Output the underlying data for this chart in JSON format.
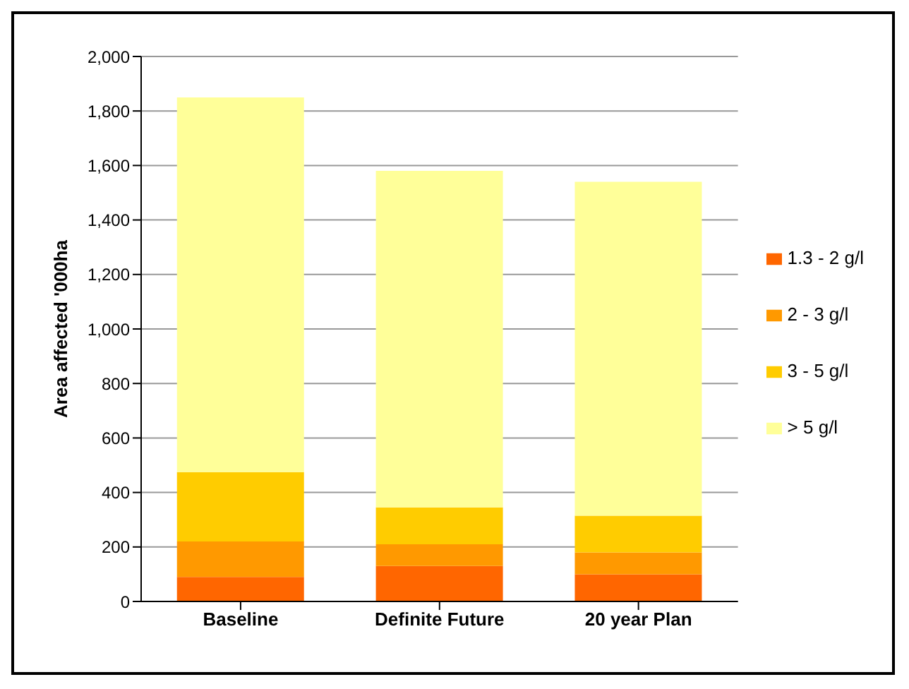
{
  "chart_data": {
    "type": "bar",
    "stacked": true,
    "ylabel": "Area affected '000ha",
    "categories": [
      "Baseline",
      "Definite Future",
      "20 year Plan"
    ],
    "series": [
      {
        "name": "1.3 - 2 g/l",
        "color": "#ff6600",
        "values": [
          90,
          130,
          100
        ]
      },
      {
        "name": "2 - 3 g/l",
        "color": "#ff9900",
        "values": [
          130,
          80,
          80
        ]
      },
      {
        "name": "3 - 5 g/l",
        "color": "#ffcc00",
        "values": [
          255,
          135,
          135
        ]
      },
      {
        "name": "> 5 g/l",
        "color": "#ffff99",
        "values": [
          1375,
          1235,
          1225
        ]
      }
    ],
    "ylim": [
      0,
      2000
    ],
    "yticks": [
      0,
      200,
      400,
      600,
      800,
      {
        "value": 1000,
        "label": "1,000"
      },
      {
        "value": 1200,
        "label": "1,200"
      },
      {
        "value": 1400,
        "label": "1,400"
      },
      {
        "value": 1600,
        "label": "1,600"
      },
      {
        "value": 1800,
        "label": "1,800"
      },
      {
        "value": 2000,
        "label": "2,000"
      }
    ],
    "grid": "y",
    "legend": "right"
  }
}
